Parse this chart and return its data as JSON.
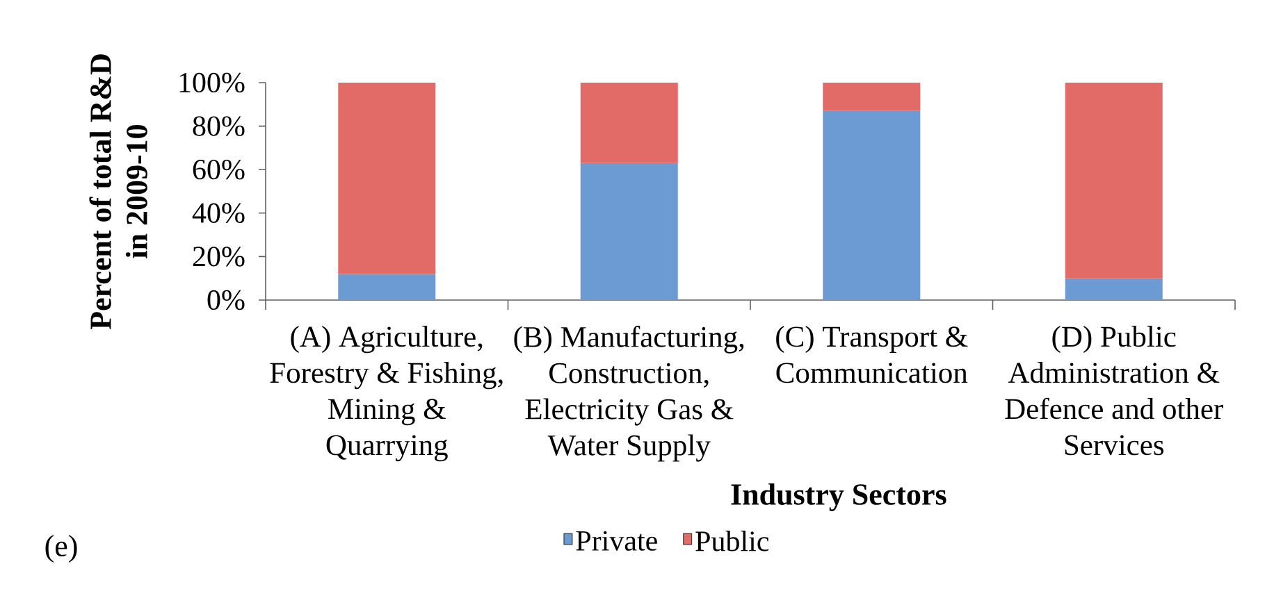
{
  "chart_data": {
    "type": "bar",
    "stacked": true,
    "ylabel": "Percent of total R&D in 2009-10",
    "xlabel": "Industry Sectors",
    "categories": [
      "(A) Agriculture, Forestry & Fishing, Mining & Quarrying",
      "(B) Manufacturing, Construction, Electricity Gas & Water Supply",
      "(C) Transport & Communication",
      "(D) Public Administration & Defence and other Services"
    ],
    "series": [
      {
        "name": "Private",
        "color": "#6c9ad2",
        "values": [
          12,
          63,
          87,
          10
        ]
      },
      {
        "name": "Public",
        "color": "#e26a67",
        "values": [
          88,
          37,
          13,
          90
        ]
      }
    ],
    "ylim": [
      0,
      100
    ],
    "yticks": [
      {
        "value": 0,
        "label": "0%"
      },
      {
        "value": 20,
        "label": "20%"
      },
      {
        "value": 40,
        "label": "40%"
      },
      {
        "value": 60,
        "label": "60%"
      },
      {
        "value": 80,
        "label": "80%"
      },
      {
        "value": 100,
        "label": "100%"
      }
    ],
    "legend": "bottom",
    "annotations": [
      "(e)"
    ]
  }
}
